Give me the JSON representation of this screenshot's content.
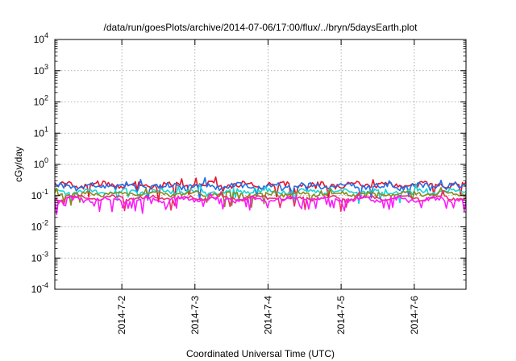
{
  "chart_data": {
    "type": "line",
    "title": "/data/run/goesPlots/archive/2014-07-06/17:00/flux/../bryn/5daysEarth.plot",
    "xlabel": "Coordinated Universal Time (UTC)",
    "ylabel": "cGy/day",
    "yscale": "log",
    "ylim": [
      0.0001,
      10000
    ],
    "y_ticks": [
      {
        "value": 0.0001,
        "base": "10",
        "exp": "-4"
      },
      {
        "value": 0.001,
        "base": "10",
        "exp": "-3"
      },
      {
        "value": 0.01,
        "base": "10",
        "exp": "-2"
      },
      {
        "value": 0.1,
        "base": "10",
        "exp": "-1"
      },
      {
        "value": 1,
        "base": "10",
        "exp": "0"
      },
      {
        "value": 10,
        "base": "10",
        "exp": "1"
      },
      {
        "value": 100,
        "base": "10",
        "exp": "2"
      },
      {
        "value": 1000,
        "base": "10",
        "exp": "3"
      },
      {
        "value": 10000,
        "base": "10",
        "exp": "4"
      }
    ],
    "xlim": [
      "2014-07-01T02:00",
      "2014-07-06T17:00"
    ],
    "x_ticks": [
      {
        "value": "2014-07-02T00:00",
        "label": "2014-7-2"
      },
      {
        "value": "2014-07-03T00:00",
        "label": "2014-7-3"
      },
      {
        "value": "2014-07-04T00:00",
        "label": "2014-7-4"
      },
      {
        "value": "2014-07-05T00:00",
        "label": "2014-7-5"
      },
      {
        "value": "2014-07-06T00:00",
        "label": "2014-7-6"
      }
    ],
    "grid": true,
    "legend": "none",
    "series": [
      {
        "color": "#e8132a",
        "base": 0.22,
        "noise": 0.2,
        "dip": 0.05
      },
      {
        "color": "#1f6fe5",
        "base": 0.2,
        "noise": 0.2,
        "dip": 0.05
      },
      {
        "color": "#14d6d6",
        "base": 0.135,
        "noise": 0.14,
        "dip": 0.04
      },
      {
        "color": "#8a8a1a",
        "base": 0.115,
        "noise": 0.12,
        "dip": 0.04
      },
      {
        "color": "#e83070",
        "base": 0.085,
        "noise": 0.11,
        "dip": 0.05
      },
      {
        "color": "#ff1aff",
        "base": 0.075,
        "noise": 0.16,
        "dip": 0.18
      }
    ]
  }
}
